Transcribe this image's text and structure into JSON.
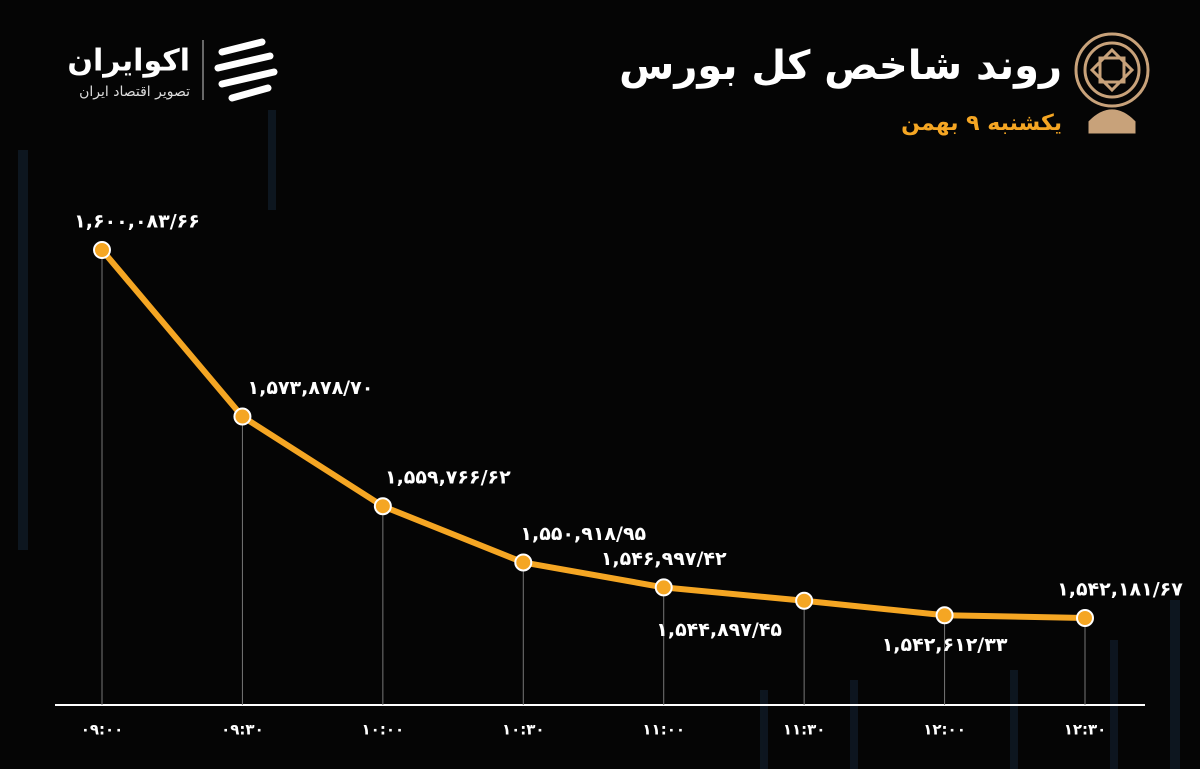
{
  "brand": {
    "name": "اکوایران",
    "tagline": "تصویر اقتصاد ایران"
  },
  "chart_data": {
    "type": "line",
    "title": "روند شاخص کل بورس",
    "subtitle": "یکشنبه ۹ بهمن",
    "categories": [
      "۰۹:۰۰",
      "۰۹:۳۰",
      "۱۰:۰۰",
      "۱۰:۳۰",
      "۱۱:۰۰",
      "۱۱:۳۰",
      "۱۲:۰۰",
      "۱۲:۳۰"
    ],
    "values": [
      1600083.66,
      1573878.7,
      1559766.62,
      1550918.95,
      1546997.42,
      1544897.45,
      1542612.33,
      1542181.67
    ],
    "value_labels": [
      "۱,۶۰۰,۰۸۳/۶۶",
      "۱,۵۷۳,۸۷۸/۷۰",
      "۱,۵۵۹,۷۶۶/۶۲",
      "۱,۵۵۰,۹۱۸/۹۵",
      "۱,۵۴۶,۹۹۷/۴۲",
      "۱,۵۴۴,۸۹۷/۴۵",
      "۱,۵۴۲,۶۱۲/۳۳",
      "۱,۵۴۲,۱۸۱/۶۷"
    ],
    "color": "#f5a623"
  }
}
